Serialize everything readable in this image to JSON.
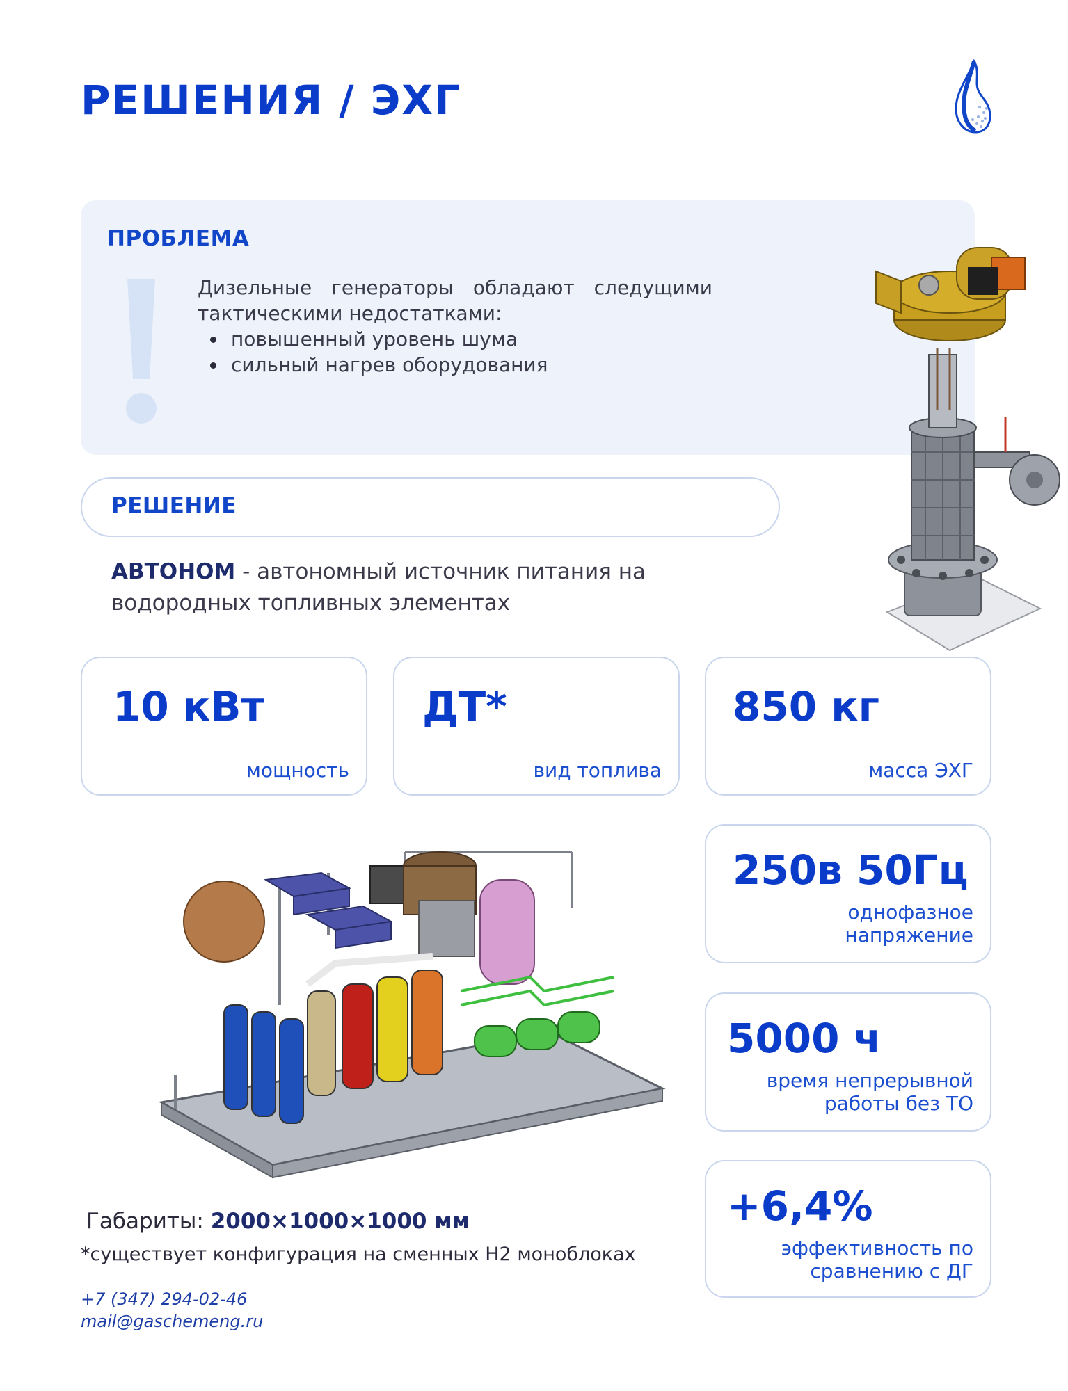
{
  "header": {
    "title": "РЕШЕНИЯ / ЭХГ",
    "logo_icon": "flame-drop-logo-icon"
  },
  "problem": {
    "heading": "ПРОБЛЕМА",
    "icon": "exclamation-icon",
    "intro": "Дизельные генераторы обладают следущими тактическими недостатками:",
    "items": [
      "повышенный уровень шума",
      "сильный нагрев оборудования"
    ]
  },
  "solution": {
    "heading": "РЕШЕНИЕ",
    "product": "АВТОНОМ",
    "description": " - автономный источник питания на водородных топливных элементах"
  },
  "specs": [
    {
      "value": "10 кВт",
      "label": "мощность"
    },
    {
      "value": "ДТ*",
      "label": "вид топлива"
    },
    {
      "value": "850 кг",
      "label": "масса ЭХГ"
    },
    {
      "value": "250в 50Гц",
      "label": "однофазное напряжение"
    },
    {
      "value": "5000 ч",
      "label": "время непрерывной работы без ТО"
    },
    {
      "value": "+6,4%",
      "label": "эффективность по сравнению с ДГ"
    }
  ],
  "dimensions": {
    "label": "Габариты: ",
    "value": "2000×1000×1000 мм"
  },
  "footnote": "*существует конфигурация на сменных Н2 моноблоках",
  "contacts": {
    "phone": "+7 (347) 294-02-46",
    "email": "mail@gaschemeng.ru"
  },
  "colors": {
    "brand_blue": "#0b3cc9",
    "panel_bg": "#eef3fb",
    "card_border": "#c9d6ee"
  }
}
